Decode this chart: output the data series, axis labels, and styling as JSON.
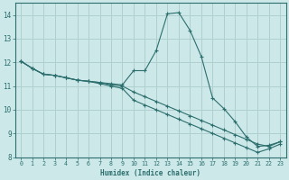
{
  "xlabel": "Humidex (Indice chaleur)",
  "bg_color": "#cce8e8",
  "grid_color": "#b0d0d0",
  "line_color": "#2d6e6e",
  "xlim": [
    -0.5,
    23.5
  ],
  "ylim": [
    8.0,
    14.5
  ],
  "yticks": [
    8,
    9,
    10,
    11,
    12,
    13,
    14
  ],
  "xticks": [
    0,
    1,
    2,
    3,
    4,
    5,
    6,
    7,
    8,
    9,
    10,
    11,
    12,
    13,
    14,
    15,
    16,
    17,
    18,
    19,
    20,
    21,
    22,
    23
  ],
  "line1_x": [
    0,
    1,
    2,
    3,
    4,
    5,
    6,
    7,
    8,
    9,
    10,
    11,
    12,
    13,
    14,
    15,
    16,
    17,
    18,
    19,
    20,
    21,
    22,
    23
  ],
  "line1_y": [
    12.05,
    11.75,
    11.5,
    11.45,
    11.35,
    11.25,
    11.2,
    11.15,
    11.1,
    11.05,
    11.65,
    11.65,
    12.5,
    14.05,
    14.1,
    13.35,
    12.25,
    10.5,
    10.05,
    9.5,
    8.85,
    8.45,
    8.5,
    8.65
  ],
  "line2_x": [
    0,
    1,
    2,
    3,
    4,
    5,
    6,
    7,
    8,
    9,
    10,
    11,
    12,
    13,
    14,
    15,
    16,
    17,
    18,
    19,
    20,
    21,
    22,
    23
  ],
  "line2_y": [
    12.05,
    11.75,
    11.5,
    11.45,
    11.35,
    11.25,
    11.2,
    11.15,
    11.05,
    11.0,
    10.75,
    10.55,
    10.35,
    10.15,
    9.95,
    9.75,
    9.55,
    9.35,
    9.15,
    8.95,
    8.75,
    8.55,
    8.45,
    8.65
  ],
  "line3_x": [
    0,
    1,
    2,
    3,
    4,
    5,
    6,
    7,
    8,
    9,
    10,
    11,
    12,
    13,
    14,
    15,
    16,
    17,
    18,
    19,
    20,
    21,
    22,
    23
  ],
  "line3_y": [
    12.05,
    11.75,
    11.5,
    11.45,
    11.35,
    11.25,
    11.2,
    11.1,
    11.0,
    10.9,
    10.4,
    10.2,
    10.0,
    9.8,
    9.6,
    9.4,
    9.2,
    9.0,
    8.8,
    8.6,
    8.4,
    8.2,
    8.35,
    8.55
  ]
}
